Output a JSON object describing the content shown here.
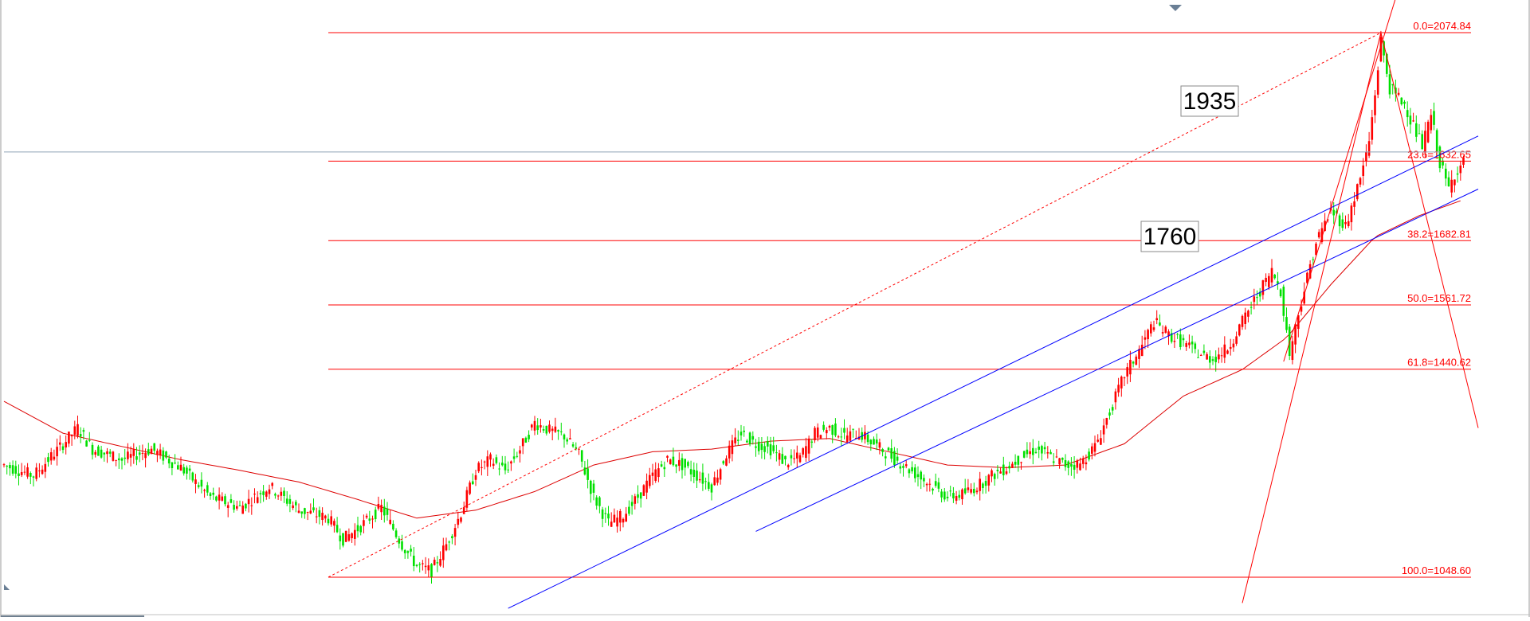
{
  "chart_data": {
    "type": "candlestick",
    "title": "",
    "xlabel": "",
    "ylabel": "",
    "price_range": [
      980,
      2150
    ],
    "grid": false,
    "colors": {
      "up": "#ff0000",
      "down": "#00e000",
      "fib": "#ff0000",
      "channel": "#0000ff",
      "ma": "#dd0000"
    },
    "fibonacci": {
      "from_price": 1048.6,
      "to_price": 2074.84,
      "levels": [
        {
          "label": "0.0=2074.84",
          "price": 2074.84
        },
        {
          "label": "23.6=1832.65",
          "price": 1832.65
        },
        {
          "label": "38.2=1682.81",
          "price": 1682.81
        },
        {
          "label": "50.0=1561.72",
          "price": 1561.72
        },
        {
          "label": "61.8=1440.62",
          "price": 1440.62
        },
        {
          "label": "100.0=1048.60",
          "price": 1048.6
        }
      ]
    },
    "horizontal_reference_price": 1850,
    "callouts": [
      {
        "text": "1935"
      },
      {
        "text": "1760"
      }
    ],
    "price_path": [
      [
        0,
        1260
      ],
      [
        10,
        1240
      ],
      [
        20,
        1300
      ],
      [
        25,
        1330
      ],
      [
        30,
        1290
      ],
      [
        40,
        1270
      ],
      [
        50,
        1290
      ],
      [
        60,
        1255
      ],
      [
        70,
        1200
      ],
      [
        80,
        1180
      ],
      [
        90,
        1220
      ],
      [
        100,
        1175
      ],
      [
        110,
        1160
      ],
      [
        115,
        1120
      ],
      [
        120,
        1140
      ],
      [
        128,
        1180
      ],
      [
        135,
        1110
      ],
      [
        140,
        1070
      ],
      [
        145,
        1060
      ],
      [
        150,
        1110
      ],
      [
        155,
        1170
      ],
      [
        160,
        1250
      ],
      [
        165,
        1270
      ],
      [
        170,
        1250
      ],
      [
        175,
        1290
      ],
      [
        180,
        1340
      ],
      [
        185,
        1325
      ],
      [
        190,
        1315
      ],
      [
        195,
        1280
      ],
      [
        200,
        1200
      ],
      [
        205,
        1150
      ],
      [
        210,
        1165
      ],
      [
        215,
        1200
      ],
      [
        220,
        1240
      ],
      [
        225,
        1270
      ],
      [
        230,
        1260
      ],
      [
        235,
        1240
      ],
      [
        240,
        1220
      ],
      [
        245,
        1280
      ],
      [
        250,
        1320
      ],
      [
        255,
        1300
      ],
      [
        260,
        1290
      ],
      [
        265,
        1265
      ],
      [
        270,
        1275
      ],
      [
        275,
        1320
      ],
      [
        280,
        1330
      ],
      [
        285,
        1315
      ],
      [
        290,
        1320
      ],
      [
        295,
        1300
      ],
      [
        300,
        1280
      ],
      [
        305,
        1260
      ],
      [
        310,
        1240
      ],
      [
        315,
        1220
      ],
      [
        320,
        1200
      ],
      [
        325,
        1205
      ],
      [
        330,
        1220
      ],
      [
        335,
        1240
      ],
      [
        340,
        1255
      ],
      [
        345,
        1275
      ],
      [
        350,
        1290
      ],
      [
        355,
        1275
      ],
      [
        360,
        1260
      ],
      [
        365,
        1262
      ],
      [
        370,
        1295
      ],
      [
        375,
        1360
      ],
      [
        380,
        1430
      ],
      [
        385,
        1475
      ],
      [
        390,
        1530
      ],
      [
        395,
        1505
      ],
      [
        400,
        1490
      ],
      [
        405,
        1470
      ],
      [
        410,
        1460
      ],
      [
        415,
        1480
      ],
      [
        420,
        1530
      ],
      [
        425,
        1580
      ],
      [
        430,
        1625
      ],
      [
        433,
        1590
      ],
      [
        436,
        1470
      ],
      [
        440,
        1570
      ],
      [
        445,
        1680
      ],
      [
        450,
        1740
      ],
      [
        455,
        1710
      ],
      [
        460,
        1800
      ],
      [
        463,
        1870
      ],
      [
        465,
        1960
      ],
      [
        467,
        2060
      ],
      [
        470,
        1970
      ],
      [
        475,
        1940
      ],
      [
        478,
        1900
      ],
      [
        481,
        1860
      ],
      [
        484,
        1920
      ],
      [
        487,
        1830
      ],
      [
        490,
        1780
      ],
      [
        492,
        1810
      ],
      [
        495,
        1830
      ]
    ],
    "moving_average": [
      [
        0,
        1380
      ],
      [
        20,
        1320
      ],
      [
        40,
        1295
      ],
      [
        60,
        1270
      ],
      [
        80,
        1250
      ],
      [
        100,
        1228
      ],
      [
        120,
        1195
      ],
      [
        140,
        1160
      ],
      [
        160,
        1175
      ],
      [
        180,
        1210
      ],
      [
        200,
        1260
      ],
      [
        220,
        1285
      ],
      [
        240,
        1290
      ],
      [
        260,
        1305
      ],
      [
        280,
        1310
      ],
      [
        300,
        1285
      ],
      [
        320,
        1260
      ],
      [
        340,
        1255
      ],
      [
        360,
        1260
      ],
      [
        380,
        1300
      ],
      [
        400,
        1390
      ],
      [
        420,
        1440
      ],
      [
        435,
        1500
      ],
      [
        450,
        1600
      ],
      [
        465,
        1690
      ],
      [
        480,
        1730
      ],
      [
        495,
        1760
      ]
    ],
    "channels": [
      {
        "name": "upper",
        "start": [
          171,
          990
        ],
        "end": [
          500,
          1880
        ]
      },
      {
        "name": "lower",
        "start": [
          255,
          1135
        ],
        "end": [
          500,
          1780
        ]
      }
    ],
    "fan_lines": [
      {
        "start": [
          434,
          1455
        ],
        "end": [
          477,
          2230
        ]
      },
      {
        "start": [
          467,
          2075
        ],
        "end": [
          500,
          1330
        ]
      },
      {
        "start": [
          467,
          2075
        ],
        "end": [
          420,
          1000
        ]
      }
    ],
    "dashed_line": {
      "start": [
        110,
        1048.6
      ],
      "end": [
        467,
        2074.84
      ]
    }
  }
}
